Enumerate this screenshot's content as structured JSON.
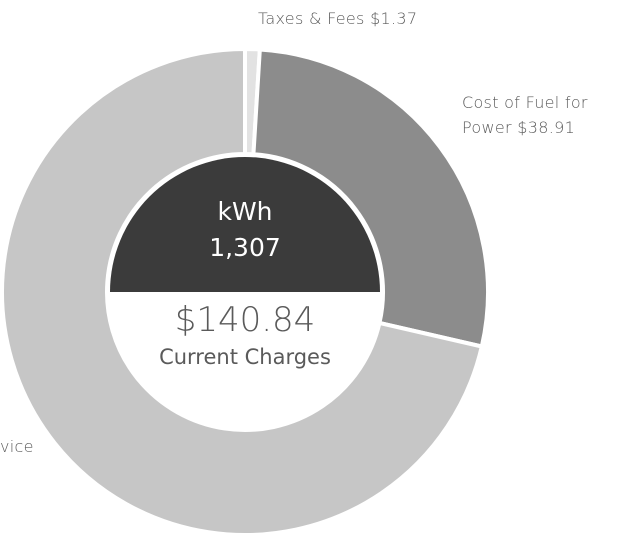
{
  "chart_data": {
    "type": "donut",
    "categories": [
      "Taxes & Fees",
      "Cost of Fuel for Power",
      "vice"
    ],
    "values": [
      1.37,
      38.91,
      100.56
    ],
    "value_labels": [
      "$1.37",
      "$38.91",
      null
    ],
    "colors": [
      "#e2e2e2",
      "#8c8c8c",
      "#c6c6c6"
    ],
    "center": {
      "unit": "kWh",
      "usage": {
        "value": 1307,
        "label": "1,307"
      },
      "total": {
        "value": 140.84,
        "label": "$140.84"
      },
      "caption": "Current Charges"
    }
  }
}
